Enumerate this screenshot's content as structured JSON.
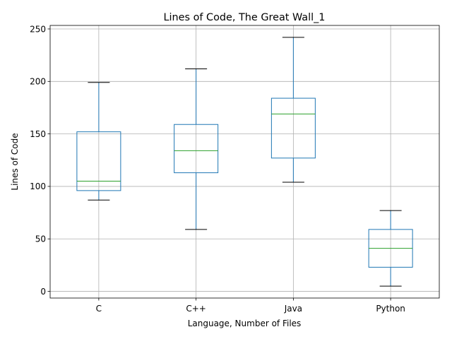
{
  "chart_data": {
    "type": "box",
    "title": "Lines of Code, The Great Wall_1",
    "xlabel": "Language, Number of Files",
    "ylabel": "Lines of Code",
    "categories": [
      "C",
      "C++",
      "Java",
      "Python"
    ],
    "boxes": [
      {
        "category": "C",
        "whisker_low": 87,
        "q1": 96,
        "median": 105,
        "q3": 152,
        "whisker_high": 199
      },
      {
        "category": "C++",
        "whisker_low": 59,
        "q1": 113,
        "median": 134,
        "q3": 159,
        "whisker_high": 212
      },
      {
        "category": "Java",
        "whisker_low": 104,
        "q1": 127,
        "median": 169,
        "q3": 184,
        "whisker_high": 242
      },
      {
        "category": "Python",
        "whisker_low": 5,
        "q1": 23,
        "median": 41,
        "q3": 59,
        "whisker_high": 77
      }
    ],
    "y_ticks": [
      0,
      50,
      100,
      150,
      200,
      250
    ],
    "ylim": [
      -6.35,
      253.35
    ],
    "grid": true,
    "colors": {
      "box": "#1f77b4",
      "median": "#2ca02c",
      "cap": "#000000",
      "grid": "#b0b0b0"
    }
  }
}
